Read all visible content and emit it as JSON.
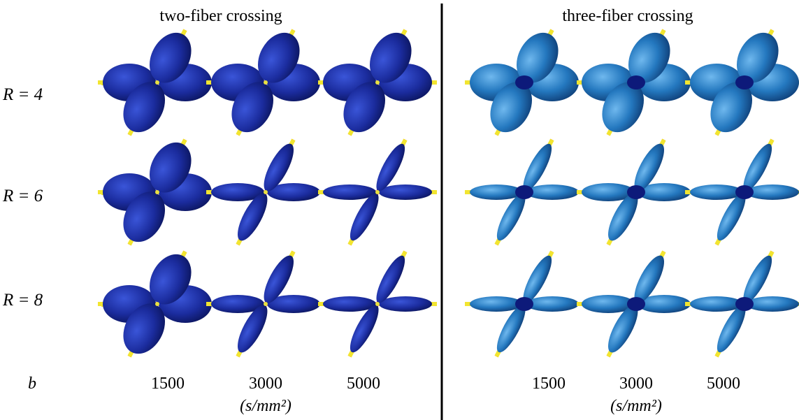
{
  "panels": [
    {
      "title": "two-fiber crossing",
      "b_values": [
        1500,
        3000,
        5000
      ],
      "unit": "(s/mm²)"
    },
    {
      "title": "three-fiber crossing",
      "b_values": [
        1500,
        3000,
        5000
      ],
      "unit": "(s/mm²)"
    }
  ],
  "row_labels": [
    "R = 4",
    "R = 6",
    "R = 8"
  ],
  "b_label": "b"
}
